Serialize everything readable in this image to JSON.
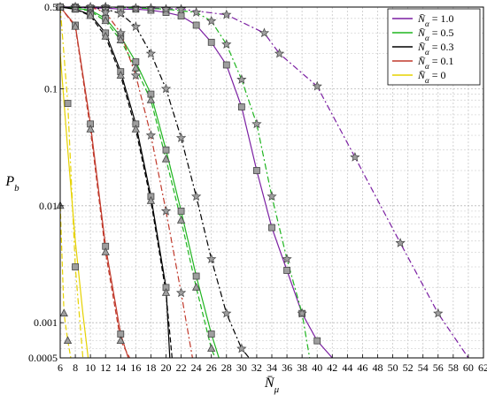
{
  "chart_data": {
    "type": "line",
    "title": "",
    "xlabel": "N̄_μ",
    "ylabel": "P_b",
    "xscale": "linear",
    "yscale": "log",
    "xlim": [
      6,
      62
    ],
    "ylim": [
      0.0005,
      0.5
    ],
    "xticks": [
      6,
      8,
      10,
      12,
      14,
      16,
      18,
      20,
      22,
      24,
      26,
      28,
      30,
      32,
      34,
      36,
      38,
      40,
      42,
      44,
      46,
      48,
      50,
      52,
      54,
      56,
      58,
      60,
      62
    ],
    "yticks": [
      {
        "value": 0.5,
        "label": "0.5"
      },
      {
        "value": 0.1,
        "label": "0.1"
      },
      {
        "value": 0.01,
        "label": "0.01"
      },
      {
        "value": 0.001,
        "label": "0.001"
      },
      {
        "value": 0.0005,
        "label": "0.0005"
      }
    ],
    "grid": true,
    "legend_position": "top-right",
    "legend": [
      {
        "label": "N̄_α = 1.0",
        "color": "#7b1fa2"
      },
      {
        "label": "N̄_α = 0.5",
        "color": "#1fb51f"
      },
      {
        "label": "N̄_α = 0.3",
        "color": "#000000"
      },
      {
        "label": "N̄_α = 0.1",
        "color": "#c0392b"
      },
      {
        "label": "N̄_α = 0",
        "color": "#e6d200"
      }
    ],
    "series": [
      {
        "group": "1.0",
        "style": "solid",
        "color": "#7b1fa2",
        "marker": "square",
        "x": [
          6,
          8,
          10,
          12,
          14,
          16,
          18,
          20,
          22,
          24,
          26,
          28,
          30,
          32,
          34,
          36,
          38,
          40,
          42
        ],
        "y": [
          0.5,
          0.5,
          0.49,
          0.49,
          0.48,
          0.48,
          0.47,
          0.45,
          0.42,
          0.35,
          0.25,
          0.16,
          0.07,
          0.02,
          0.0065,
          0.0028,
          0.0012,
          0.0007,
          0.0005
        ]
      },
      {
        "group": "1.0",
        "style": "dashdot",
        "color": "#7b1fa2",
        "marker": "star",
        "x": [
          6,
          12,
          18,
          22,
          28,
          33,
          35,
          40,
          45,
          51,
          56,
          60
        ],
        "y": [
          0.5,
          0.5,
          0.49,
          0.48,
          0.43,
          0.3,
          0.2,
          0.105,
          0.026,
          0.0048,
          0.0012,
          0.0005
        ]
      },
      {
        "group": "0.5",
        "style": "solid",
        "color": "#1fb51f",
        "marker": "square",
        "x": [
          6,
          8,
          10,
          12,
          14,
          16,
          18,
          20,
          22,
          24,
          26,
          27
        ],
        "y": [
          0.5,
          0.49,
          0.47,
          0.4,
          0.28,
          0.17,
          0.09,
          0.03,
          0.009,
          0.0025,
          0.0008,
          0.0005
        ]
      },
      {
        "group": "0.5",
        "style": "dashed",
        "color": "#1fb51f",
        "marker": "triangle",
        "x": [
          6,
          8,
          10,
          12,
          14,
          16,
          18,
          20,
          22,
          24,
          26,
          26.5
        ],
        "y": [
          0.5,
          0.49,
          0.46,
          0.38,
          0.26,
          0.15,
          0.08,
          0.025,
          0.0075,
          0.002,
          0.0006,
          0.0005
        ]
      },
      {
        "group": "0.5",
        "style": "dashdot",
        "color": "#1fb51f",
        "marker": "star",
        "x": [
          8,
          12,
          16,
          20,
          24,
          26,
          28,
          30,
          32,
          34,
          36,
          38,
          39
        ],
        "y": [
          0.5,
          0.5,
          0.49,
          0.48,
          0.45,
          0.38,
          0.24,
          0.12,
          0.05,
          0.012,
          0.0035,
          0.0012,
          0.0005
        ]
      },
      {
        "group": "0.3",
        "style": "solid",
        "color": "#000000",
        "marker": "square",
        "x": [
          6,
          8,
          10,
          12,
          14,
          16,
          18,
          20,
          20.5
        ],
        "y": [
          0.5,
          0.48,
          0.43,
          0.3,
          0.14,
          0.05,
          0.012,
          0.002,
          0.0005
        ]
      },
      {
        "group": "0.3",
        "style": "dashed",
        "color": "#000000",
        "marker": "triangle",
        "x": [
          6,
          8,
          10,
          12,
          14,
          16,
          18,
          20,
          20.8
        ],
        "y": [
          0.5,
          0.48,
          0.42,
          0.28,
          0.13,
          0.045,
          0.011,
          0.0018,
          0.0005
        ]
      },
      {
        "group": "0.3",
        "style": "dashdot",
        "color": "#000000",
        "marker": "star",
        "x": [
          8,
          10,
          12,
          14,
          16,
          18,
          20,
          22,
          24,
          26,
          28,
          30,
          31
        ],
        "y": [
          0.5,
          0.49,
          0.48,
          0.44,
          0.34,
          0.2,
          0.1,
          0.038,
          0.012,
          0.0035,
          0.0012,
          0.0006,
          0.0005
        ]
      },
      {
        "group": "0.1",
        "style": "solid",
        "color": "#c0392b",
        "marker": "square",
        "x": [
          6,
          8,
          10,
          12,
          14,
          15
        ],
        "y": [
          0.5,
          0.35,
          0.05,
          0.0045,
          0.0008,
          0.0005
        ]
      },
      {
        "group": "0.1",
        "style": "dashed",
        "color": "#c0392b",
        "marker": "triangle",
        "x": [
          6,
          8,
          10,
          12,
          14,
          15.2
        ],
        "y": [
          0.5,
          0.34,
          0.045,
          0.004,
          0.0007,
          0.0005
        ]
      },
      {
        "group": "0.1",
        "style": "dashdot",
        "color": "#c0392b",
        "marker": "star",
        "x": [
          10,
          12,
          14,
          16,
          18,
          20,
          22,
          23.5
        ],
        "y": [
          0.5,
          0.45,
          0.3,
          0.13,
          0.04,
          0.009,
          0.0018,
          0.0005
        ]
      },
      {
        "group": "0",
        "style": "solid",
        "color": "#e6d200",
        "marker": "none",
        "x": [
          6,
          7,
          8,
          9,
          9.7
        ],
        "y": [
          0.2,
          0.03,
          0.005,
          0.0012,
          0.0005
        ]
      },
      {
        "group": "0",
        "style": "dashed",
        "color": "#e6d200",
        "marker": "triangle",
        "x": [
          6,
          6.5,
          7,
          7.4
        ],
        "y": [
          0.01,
          0.0012,
          0.0007,
          0.0005
        ]
      },
      {
        "group": "0",
        "style": "dashdot",
        "color": "#e6d200",
        "marker": "square",
        "x": [
          6,
          7,
          8,
          9
        ],
        "y": [
          0.5,
          0.075,
          0.003,
          0.0005
        ]
      }
    ]
  }
}
